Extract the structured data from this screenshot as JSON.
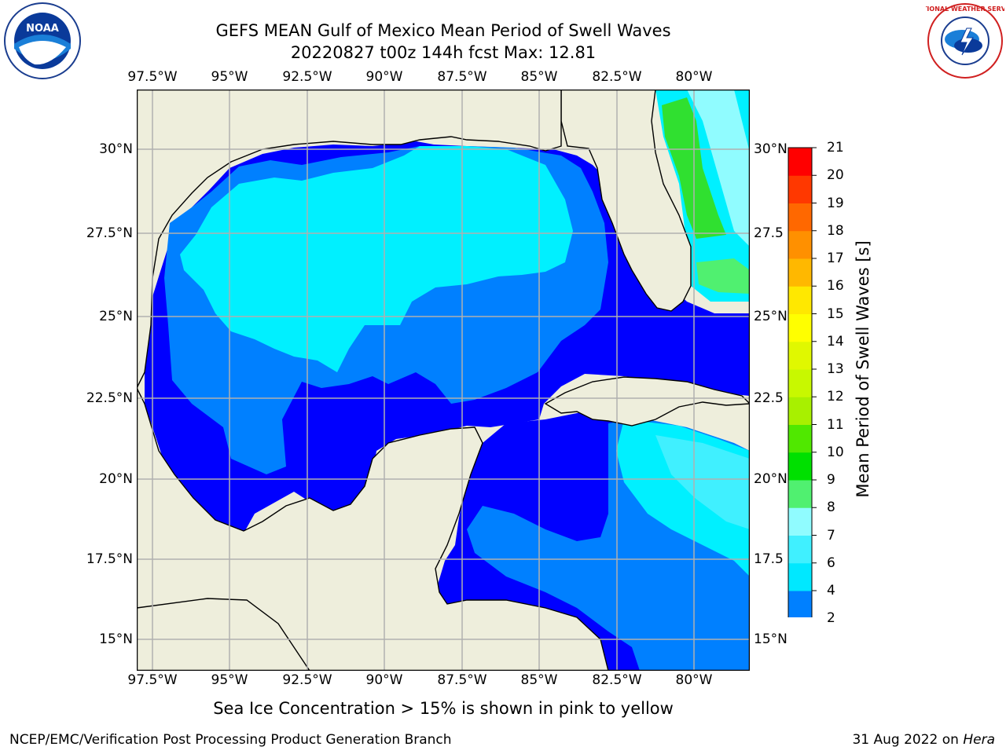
{
  "header": {
    "title": "GEFS MEAN Gulf of Mexico Mean Period of Swell Waves",
    "subtitle": "20220827 t00z 144h fcst   Max: 12.81"
  },
  "logos": {
    "left": "NOAA",
    "right": "NATIONAL WEATHER SERVICE"
  },
  "map": {
    "lon_ticks": [
      "97.5°W",
      "95°W",
      "92.5°W",
      "90°W",
      "87.5°W",
      "85°W",
      "82.5°W",
      "80°W"
    ],
    "lat_ticks_left": [
      "30°N",
      "27.5°N",
      "25°N",
      "22.5°N",
      "20°N",
      "17.5°N",
      "15°N"
    ],
    "lat_ticks_right": [
      "30°N",
      "27.5",
      "25°N",
      "22.5",
      "20°N",
      "17.5",
      "15°N"
    ],
    "land_color": "#eeeedc",
    "grid_color": "#b0b0b0"
  },
  "colorbar": {
    "label": "Mean Period of Swell Waves [s]",
    "ticks": [
      "2",
      "4",
      "6",
      "7",
      "8",
      "9",
      "10",
      "11",
      "12",
      "13",
      "14",
      "15",
      "16",
      "17",
      "18",
      "19",
      "20",
      "21"
    ],
    "colors": [
      "#0080ff",
      "#00e8ff",
      "#40f0ff",
      "#90fcff",
      "#50f070",
      "#00e000",
      "#50e800",
      "#a8f000",
      "#c8f800",
      "#e0f800",
      "#ffff00",
      "#ffe800",
      "#ffb800",
      "#ff9000",
      "#ff6800",
      "#ff3800",
      "#ff0000"
    ],
    "extend_color": "#0000ff"
  },
  "note": "Sea Ice Concentration > 15% is shown in pink to yellow",
  "footer": {
    "left": "NCEP/EMC/Verification Post Processing Product Generation Branch",
    "date": "31 Aug 2022 on ",
    "machine": "Hera"
  }
}
